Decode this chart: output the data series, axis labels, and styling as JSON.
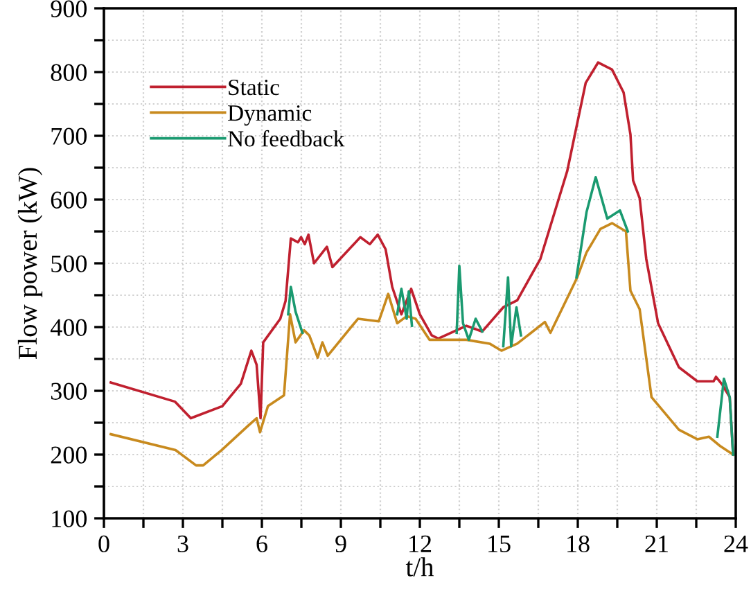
{
  "chart_data": {
    "type": "line",
    "xlabel": "t/h",
    "ylabel": "Flow power (kW)",
    "xlim": [
      0,
      24
    ],
    "ylim": [
      100,
      900
    ],
    "xticks": [
      0,
      {
        "value": 1.5,
        "label": null
      },
      3,
      {
        "value": 4.5,
        "label": null
      },
      6,
      {
        "value": 7.5,
        "label": null
      },
      9,
      {
        "value": 10.5,
        "label": null
      },
      12,
      {
        "value": 13.5,
        "label": null
      },
      15,
      {
        "value": 16.5,
        "label": null
      },
      18,
      {
        "value": 19.5,
        "label": null
      },
      21,
      {
        "value": 22.5,
        "label": null
      },
      24
    ],
    "yticks": [
      100,
      {
        "value": 150,
        "label": null
      },
      200,
      {
        "value": 250,
        "label": null
      },
      300,
      {
        "value": 350,
        "label": null
      },
      400,
      {
        "value": 450,
        "label": null
      },
      500,
      {
        "value": 550,
        "label": null
      },
      600,
      {
        "value": 650,
        "label": null
      },
      700,
      {
        "value": 750,
        "label": null
      },
      800,
      {
        "value": 850,
        "label": null
      },
      900
    ],
    "grid": true,
    "legend": "top left",
    "line_style": "solid",
    "marker": "none",
    "series": [
      {
        "name": "Static",
        "color": "#c0202f",
        "x": [
          0.26,
          2.7,
          3.3,
          4.5,
          5.2,
          5.6,
          5.8,
          5.95,
          6.05,
          6.7,
          6.9,
          7.1,
          7.37,
          7.49,
          7.63,
          7.77,
          7.98,
          8.47,
          8.68,
          9.74,
          10.1,
          10.4,
          10.7,
          10.95,
          11.3,
          11.67,
          12.0,
          12.45,
          12.7,
          13.77,
          14.37,
          15.17,
          15.7,
          16.58,
          17.6,
          18.3,
          18.77,
          19.3,
          19.74,
          20.0,
          20.1,
          20.35,
          20.6,
          21.05,
          21.84,
          22.54,
          23.16,
          23.25,
          23.5,
          23.77,
          23.9
        ],
        "values": [
          313,
          283,
          257,
          276,
          311,
          363,
          341,
          257,
          376,
          413,
          441,
          539,
          533,
          541,
          530,
          545,
          500,
          526,
          494,
          541,
          530,
          545,
          522,
          463,
          420,
          460,
          420,
          387,
          382,
          402,
          393,
          431,
          442,
          507,
          645,
          783,
          815,
          804,
          768,
          702,
          630,
          602,
          507,
          406,
          337,
          315,
          315,
          322,
          309,
          290,
          200
        ]
      },
      {
        "name": "Dynamic",
        "color": "#c88a1e",
        "x": [
          0.26,
          2.72,
          3.5,
          3.77,
          4.47,
          5.5,
          5.8,
          5.93,
          6.23,
          6.84,
          7.07,
          7.28,
          7.6,
          7.8,
          8.12,
          8.3,
          8.5,
          9.65,
          10.44,
          10.8,
          11.14,
          11.5,
          11.84,
          12.37,
          13.77,
          14.65,
          15.1,
          15.7,
          16.75,
          16.96,
          17.98,
          18.33,
          18.86,
          19.3,
          19.83,
          20.0,
          20.35,
          20.8,
          21.84,
          22.54,
          22.98,
          23.42,
          23.9
        ],
        "values": [
          232,
          207,
          183,
          183,
          207,
          246,
          257,
          235,
          276,
          293,
          420,
          376,
          395,
          387,
          352,
          376,
          355,
          413,
          409,
          452,
          406,
          417,
          413,
          380,
          380,
          374,
          363,
          374,
          408,
          391,
          478,
          517,
          554,
          563,
          550,
          457,
          428,
          290,
          239,
          224,
          228,
          213,
          200
        ]
      },
      {
        "name": "No feedback",
        "color": "#1a9a70",
        "x": [
          7.0,
          7.1,
          7.28,
          7.54,
          9.0,
          11.14,
          11.3,
          11.5,
          11.58,
          11.7,
          12.5,
          13.4,
          13.5,
          13.64,
          13.86,
          14.12,
          14.37,
          14.8,
          15.17,
          15.35,
          15.47,
          15.67,
          15.84,
          17.0,
          17.95,
          18.33,
          18.68,
          19.12,
          19.6,
          19.9,
          21.5,
          23.3,
          23.55,
          23.77,
          23.9
        ],
        "values": [
          420,
          463,
          424,
          391,
          null,
          420,
          460,
          413,
          456,
          402,
          null,
          391,
          496,
          406,
          380,
          413,
          393,
          null,
          370,
          478,
          370,
          431,
          387,
          null,
          478,
          580,
          635,
          570,
          583,
          550,
          null,
          228,
          319,
          290,
          200
        ]
      }
    ]
  }
}
